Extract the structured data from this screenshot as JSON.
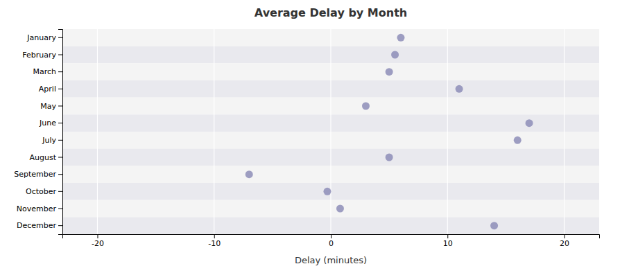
{
  "chart_data": {
    "type": "dot",
    "orientation": "horizontal",
    "title": "Average Delay by Month",
    "xlabel": "Delay (minutes)",
    "categories": [
      "January",
      "February",
      "March",
      "April",
      "May",
      "June",
      "July",
      "August",
      "September",
      "October",
      "November",
      "December"
    ],
    "values": [
      6.0,
      5.5,
      5.0,
      11.0,
      3.0,
      17.0,
      16.0,
      5.0,
      -7.0,
      -0.3,
      0.8,
      14.0
    ],
    "color": "#8080b0",
    "xlim": [
      -23,
      23
    ],
    "xticks": [
      -20,
      -10,
      0,
      10,
      20
    ],
    "grid": true
  }
}
